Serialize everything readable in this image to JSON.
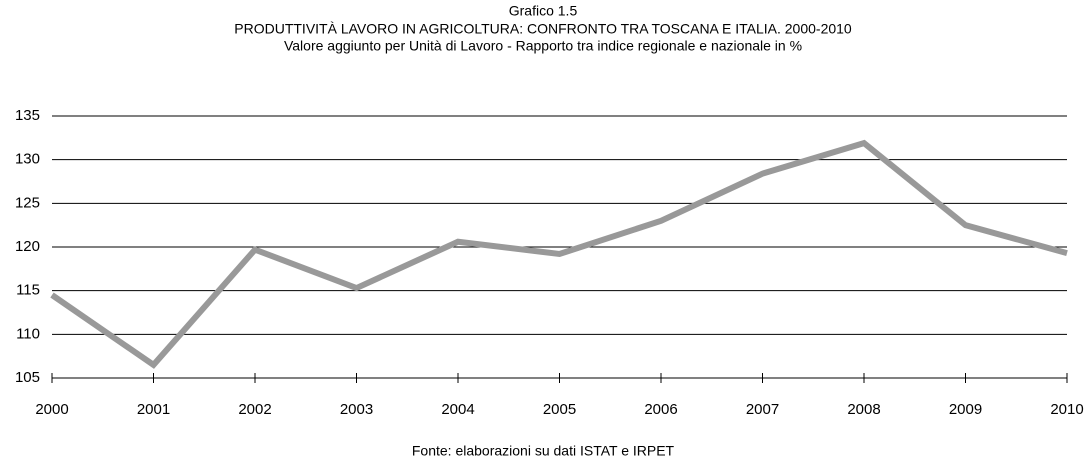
{
  "chart_data": {
    "type": "line",
    "title": "Grafico 1.5",
    "subtitle": "PRODUTTIVITÀ LAVORO IN AGRICOLTURA: CONFRONTO TRA TOSCANA E ITALIA. 2000-2010",
    "subtitle2": "Valore aggiunto per Unità di Lavoro - Rapporto tra indice regionale e nazionale in %",
    "source": "Fonte: elaborazioni su dati ISTAT e IRPET",
    "categories": [
      "2000",
      "2001",
      "2002",
      "2003",
      "2004",
      "2005",
      "2006",
      "2007",
      "2008",
      "2009",
      "2010"
    ],
    "values": [
      114.5,
      106.5,
      119.7,
      115.3,
      120.6,
      119.2,
      123.0,
      128.4,
      131.9,
      122.5,
      119.3
    ],
    "color": "#999999",
    "ylim": [
      105,
      135
    ],
    "yticks": [
      105,
      110,
      115,
      120,
      125,
      130,
      135
    ],
    "grid": true
  }
}
